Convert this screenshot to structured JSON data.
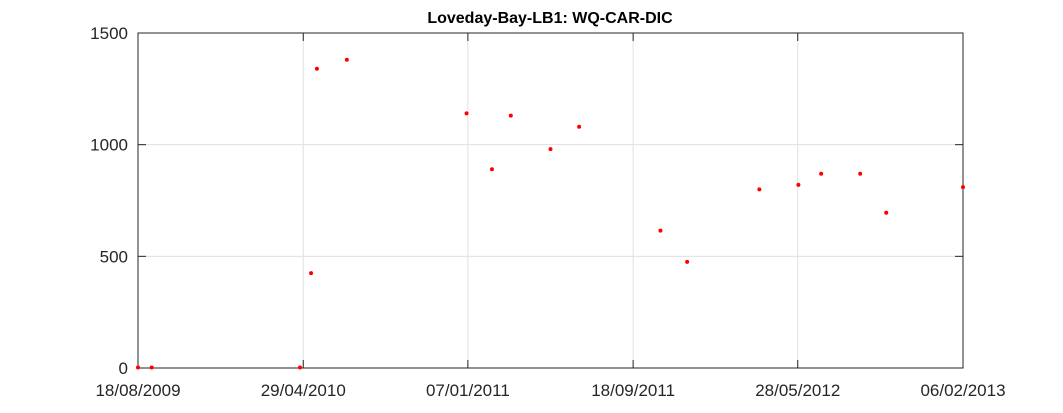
{
  "chart_data": {
    "type": "scatter",
    "title": "Loveday-Bay-LB1: WQ-CAR-DIC",
    "xlabel": "",
    "ylabel": "",
    "x_axis_type": "date",
    "xlim": [
      "2009-08-18",
      "2013-02-06"
    ],
    "ylim": [
      0,
      1500
    ],
    "x_ticks": [
      "2009-08-18",
      "2010-04-29",
      "2011-01-07",
      "2011-09-18",
      "2012-05-28",
      "2013-02-06"
    ],
    "x_tick_labels": [
      "18/08/2009",
      "29/04/2010",
      "07/01/2011",
      "18/09/2011",
      "28/05/2012",
      "06/02/2013"
    ],
    "y_ticks": [
      0,
      500,
      1000,
      1500
    ],
    "y_tick_labels": [
      "0",
      "500",
      "1000",
      "1500"
    ],
    "grid": true,
    "marker_color": "#ff0000",
    "points": [
      {
        "x": "2009-08-18",
        "y": 2
      },
      {
        "x": "2009-09-08",
        "y": 2
      },
      {
        "x": "2010-04-24",
        "y": 2
      },
      {
        "x": "2010-05-11",
        "y": 425
      },
      {
        "x": "2010-05-20",
        "y": 1340
      },
      {
        "x": "2010-07-05",
        "y": 1380
      },
      {
        "x": "2011-01-05",
        "y": 1140
      },
      {
        "x": "2011-02-13",
        "y": 890
      },
      {
        "x": "2011-03-14",
        "y": 1130
      },
      {
        "x": "2011-05-14",
        "y": 980
      },
      {
        "x": "2011-06-27",
        "y": 1080
      },
      {
        "x": "2011-10-30",
        "y": 615
      },
      {
        "x": "2011-12-10",
        "y": 475
      },
      {
        "x": "2012-03-30",
        "y": 800
      },
      {
        "x": "2012-05-29",
        "y": 820
      },
      {
        "x": "2012-07-03",
        "y": 870
      },
      {
        "x": "2012-09-01",
        "y": 870
      },
      {
        "x": "2012-10-11",
        "y": 695
      },
      {
        "x": "2013-02-06",
        "y": 810
      }
    ]
  }
}
